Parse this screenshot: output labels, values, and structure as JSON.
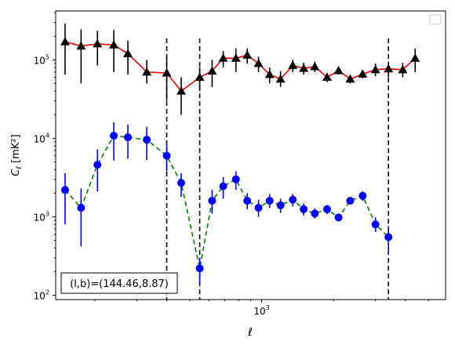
{
  "chart_data": {
    "type": "scatter",
    "xscale": "log",
    "yscale": "log",
    "xlabel": "ℓ",
    "ylabel_main": "C",
    "ylabel_sub": "ℓ",
    "ylabel_unit": "[mK²]",
    "xlim": [
      137,
      5900
    ],
    "ylim": [
      88,
      420000
    ],
    "x_tick_labels": [
      {
        "value": 1000,
        "base": "10",
        "exp": "3"
      }
    ],
    "y_tick_labels": [
      {
        "value": 100,
        "base": "10",
        "exp": "2"
      },
      {
        "value": 1000,
        "base": "10",
        "exp": "3"
      },
      {
        "value": 10000,
        "base": "10",
        "exp": "4"
      },
      {
        "value": 100000,
        "base": "10",
        "exp": "5"
      }
    ],
    "vlines": [
      400,
      550,
      3400
    ],
    "legend": "top-right",
    "annotation": "(l,b)=(144.46,8.87)",
    "series": [
      {
        "color": "#000000",
        "line_color": "#ff0000",
        "line_style": "solid",
        "marker": "triangle",
        "points": [
          {
            "x": 150,
            "y": 170000,
            "lo": 65000,
            "hi": 290000
          },
          {
            "x": 175,
            "y": 150000,
            "lo": 50000,
            "hi": 245000
          },
          {
            "x": 205,
            "y": 160000,
            "lo": 85000,
            "hi": 235000
          },
          {
            "x": 240,
            "y": 155000,
            "lo": 70000,
            "hi": 240000
          },
          {
            "x": 275,
            "y": 120000,
            "lo": 65000,
            "hi": 175000
          },
          {
            "x": 330,
            "y": 70000,
            "lo": 50000,
            "hi": 100000
          },
          {
            "x": 400,
            "y": 68000,
            "lo": 30000,
            "hi": 110000
          },
          {
            "x": 460,
            "y": 40000,
            "lo": 20000,
            "hi": 60000
          },
          {
            "x": 550,
            "y": 60000,
            "lo": 40000,
            "hi": 80000
          },
          {
            "x": 620,
            "y": 72000,
            "lo": 45000,
            "hi": 100000
          },
          {
            "x": 690,
            "y": 105000,
            "lo": 80000,
            "hi": 130000
          },
          {
            "x": 780,
            "y": 105000,
            "lo": 70000,
            "hi": 140000
          },
          {
            "x": 870,
            "y": 115000,
            "lo": 90000,
            "hi": 140000
          },
          {
            "x": 970,
            "y": 90000,
            "lo": 70000,
            "hi": 110000
          },
          {
            "x": 1080,
            "y": 65000,
            "lo": 50000,
            "hi": 80000
          },
          {
            "x": 1200,
            "y": 57000,
            "lo": 45000,
            "hi": 72000
          },
          {
            "x": 1350,
            "y": 85000,
            "lo": 70000,
            "hi": 100000
          },
          {
            "x": 1500,
            "y": 78000,
            "lo": 65000,
            "hi": 92000
          },
          {
            "x": 1670,
            "y": 82000,
            "lo": 70000,
            "hi": 95000
          },
          {
            "x": 1880,
            "y": 60000,
            "lo": 52000,
            "hi": 68000
          },
          {
            "x": 2100,
            "y": 73000,
            "lo": 65000,
            "hi": 82000
          },
          {
            "x": 2350,
            "y": 57000,
            "lo": 50000,
            "hi": 64000
          },
          {
            "x": 2650,
            "y": 66000,
            "lo": 58000,
            "hi": 74000
          },
          {
            "x": 3000,
            "y": 75000,
            "lo": 62000,
            "hi": 90000
          },
          {
            "x": 3400,
            "y": 77000,
            "lo": 60000,
            "hi": 95000
          },
          {
            "x": 3900,
            "y": 75000,
            "lo": 60000,
            "hi": 92000
          },
          {
            "x": 4400,
            "y": 105000,
            "lo": 70000,
            "hi": 140000
          }
        ]
      },
      {
        "color": "#0000ff",
        "line_color": "#008000",
        "line_style": "dashed",
        "marker": "circle",
        "points": [
          {
            "x": 150,
            "y": 2200,
            "lo": 800,
            "hi": 3600
          },
          {
            "x": 175,
            "y": 1300,
            "lo": 420,
            "hi": 2300
          },
          {
            "x": 205,
            "y": 4600,
            "lo": 2100,
            "hi": 7200
          },
          {
            "x": 240,
            "y": 10800,
            "lo": 5200,
            "hi": 16000
          },
          {
            "x": 275,
            "y": 10300,
            "lo": 5500,
            "hi": 15000
          },
          {
            "x": 330,
            "y": 9600,
            "lo": 5300,
            "hi": 14000
          },
          {
            "x": 400,
            "y": 6000,
            "lo": 3800,
            "hi": 8200
          },
          {
            "x": 460,
            "y": 2700,
            "lo": 1800,
            "hi": 3600
          },
          {
            "x": 550,
            "y": 220,
            "lo": 140,
            "hi": 300
          },
          {
            "x": 620,
            "y": 1600,
            "lo": 1100,
            "hi": 2200
          },
          {
            "x": 690,
            "y": 2450,
            "lo": 1700,
            "hi": 3200
          },
          {
            "x": 780,
            "y": 3000,
            "lo": 2200,
            "hi": 3800
          },
          {
            "x": 870,
            "y": 1600,
            "lo": 1250,
            "hi": 2000
          },
          {
            "x": 970,
            "y": 1300,
            "lo": 1000,
            "hi": 1650
          },
          {
            "x": 1080,
            "y": 1600,
            "lo": 1300,
            "hi": 1950
          },
          {
            "x": 1200,
            "y": 1400,
            "lo": 1120,
            "hi": 1700
          },
          {
            "x": 1350,
            "y": 1650,
            "lo": 1350,
            "hi": 1950
          },
          {
            "x": 1500,
            "y": 1250,
            "lo": 1040,
            "hi": 1480
          },
          {
            "x": 1670,
            "y": 1100,
            "lo": 950,
            "hi": 1280
          },
          {
            "x": 1880,
            "y": 1250,
            "lo": 1080,
            "hi": 1420
          },
          {
            "x": 2100,
            "y": 980,
            "lo": 880,
            "hi": 1090
          },
          {
            "x": 2350,
            "y": 1600,
            "lo": 1450,
            "hi": 1750
          },
          {
            "x": 2650,
            "y": 1850,
            "lo": 1600,
            "hi": 2100
          },
          {
            "x": 3000,
            "y": 800,
            "lo": 640,
            "hi": 980
          },
          {
            "x": 3400,
            "y": 550,
            "lo": 360,
            "hi": 760
          }
        ]
      }
    ]
  }
}
